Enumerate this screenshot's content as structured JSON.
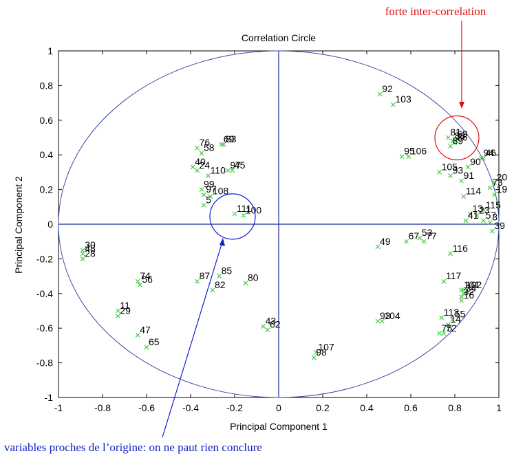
{
  "chart_data": {
    "type": "scatter",
    "title": "Correlation Circle",
    "xlabel": "Principal Component 1",
    "ylabel": "Principal Component 2",
    "xlim": [
      -1,
      1
    ],
    "ylim": [
      -1,
      1
    ],
    "xticks": [
      "-1",
      "-0.8",
      "-0.6",
      "-0.4",
      "-0.2",
      "0",
      "0.2",
      "0.4",
      "0.6",
      "0.8",
      "1"
    ],
    "yticks": [
      "1",
      "0.8",
      "0.6",
      "0.4",
      "0.2",
      "0",
      "-0.2",
      "-0.4",
      "-0.6",
      "-0.8",
      "-1"
    ],
    "grid": false,
    "marker": "x",
    "marker_color": "#44cc44",
    "axes_color": "#1a2a9a",
    "circle_color": "#3a4aa0",
    "points": [
      {
        "label": "92",
        "x": 0.46,
        "y": 0.75
      },
      {
        "label": "103",
        "x": 0.52,
        "y": 0.69
      },
      {
        "label": "81",
        "x": 0.77,
        "y": 0.5
      },
      {
        "label": "88",
        "x": 0.79,
        "y": 0.48
      },
      {
        "label": "60",
        "x": 0.8,
        "y": 0.49
      },
      {
        "label": "86",
        "x": 0.8,
        "y": 0.47
      },
      {
        "label": "89",
        "x": 0.78,
        "y": 0.45
      },
      {
        "label": "106",
        "x": 0.59,
        "y": 0.39
      },
      {
        "label": "95",
        "x": 0.56,
        "y": 0.39
      },
      {
        "label": "94",
        "x": 0.92,
        "y": 0.38
      },
      {
        "label": "46",
        "x": 0.93,
        "y": 0.38
      },
      {
        "label": "90",
        "x": 0.86,
        "y": 0.33
      },
      {
        "label": "105",
        "x": 0.73,
        "y": 0.3
      },
      {
        "label": "93",
        "x": 0.78,
        "y": 0.28
      },
      {
        "label": "91",
        "x": 0.83,
        "y": 0.25
      },
      {
        "label": "114",
        "x": 0.84,
        "y": 0.16
      },
      {
        "label": "115",
        "x": 0.93,
        "y": 0.08
      },
      {
        "label": "20",
        "x": 0.98,
        "y": 0.24
      },
      {
        "label": "73",
        "x": 0.96,
        "y": 0.21
      },
      {
        "label": "19",
        "x": 0.98,
        "y": 0.17
      },
      {
        "label": "13",
        "x": 0.87,
        "y": 0.06
      },
      {
        "label": "23",
        "x": 0.9,
        "y": 0.05
      },
      {
        "label": "57",
        "x": 0.93,
        "y": 0.02
      },
      {
        "label": "3",
        "x": 0.96,
        "y": 0.01
      },
      {
        "label": "41",
        "x": 0.85,
        "y": 0.02
      },
      {
        "label": "39",
        "x": 0.97,
        "y": -0.04
      },
      {
        "label": "49",
        "x": 0.45,
        "y": -0.13
      },
      {
        "label": "67",
        "x": 0.58,
        "y": -0.1
      },
      {
        "label": "53",
        "x": 0.64,
        "y": -0.08
      },
      {
        "label": "77",
        "x": 0.66,
        "y": -0.1
      },
      {
        "label": "116",
        "x": 0.78,
        "y": -0.17
      },
      {
        "label": "117",
        "x": 0.75,
        "y": -0.33
      },
      {
        "label": "101",
        "x": 0.83,
        "y": -0.38
      },
      {
        "label": "102",
        "x": 0.84,
        "y": -0.38
      },
      {
        "label": "32",
        "x": 0.83,
        "y": -0.42
      },
      {
        "label": "34",
        "x": 0.84,
        "y": -0.4
      },
      {
        "label": "16",
        "x": 0.83,
        "y": -0.44
      },
      {
        "label": "113",
        "x": 0.74,
        "y": -0.54
      },
      {
        "label": "55",
        "x": 0.79,
        "y": -0.55
      },
      {
        "label": "14",
        "x": 0.77,
        "y": -0.58
      },
      {
        "label": "75",
        "x": 0.73,
        "y": -0.63
      },
      {
        "label": "72",
        "x": 0.75,
        "y": -0.63
      },
      {
        "label": "93",
        "x": 0.45,
        "y": -0.56
      },
      {
        "label": "104",
        "x": 0.47,
        "y": -0.56
      },
      {
        "label": "107",
        "x": 0.17,
        "y": -0.74
      },
      {
        "label": "98",
        "x": 0.16,
        "y": -0.77
      },
      {
        "label": "43",
        "x": -0.07,
        "y": -0.59
      },
      {
        "label": "62",
        "x": -0.05,
        "y": -0.61
      },
      {
        "label": "85",
        "x": -0.27,
        "y": -0.3
      },
      {
        "label": "87",
        "x": -0.37,
        "y": -0.33
      },
      {
        "label": "82",
        "x": -0.3,
        "y": -0.38
      },
      {
        "label": "80",
        "x": -0.15,
        "y": -0.34
      },
      {
        "label": "74",
        "x": -0.64,
        "y": -0.33
      },
      {
        "label": "56",
        "x": -0.63,
        "y": -0.35
      },
      {
        "label": "11",
        "x": -0.73,
        "y": -0.5
      },
      {
        "label": "29",
        "x": -0.73,
        "y": -0.53
      },
      {
        "label": "47",
        "x": -0.64,
        "y": -0.64
      },
      {
        "label": "65",
        "x": -0.6,
        "y": -0.71
      },
      {
        "label": "30",
        "x": -0.89,
        "y": -0.15
      },
      {
        "label": "48",
        "x": -0.89,
        "y": -0.17
      },
      {
        "label": "28",
        "x": -0.89,
        "y": -0.2
      },
      {
        "label": "76",
        "x": -0.37,
        "y": 0.44
      },
      {
        "label": "58",
        "x": -0.35,
        "y": 0.41
      },
      {
        "label": "69",
        "x": -0.26,
        "y": 0.46
      },
      {
        "label": "83",
        "x": -0.25,
        "y": 0.46
      },
      {
        "label": "40",
        "x": -0.39,
        "y": 0.33
      },
      {
        "label": "24",
        "x": -0.37,
        "y": 0.31
      },
      {
        "label": "110",
        "x": -0.32,
        "y": 0.28
      },
      {
        "label": "97",
        "x": -0.23,
        "y": 0.31
      },
      {
        "label": "45",
        "x": -0.21,
        "y": 0.31
      },
      {
        "label": "99",
        "x": -0.35,
        "y": 0.2
      },
      {
        "label": "97",
        "x": -0.34,
        "y": 0.17
      },
      {
        "label": "108",
        "x": -0.31,
        "y": 0.16
      },
      {
        "label": "5",
        "x": -0.34,
        "y": 0.11
      },
      {
        "label": "111",
        "x": -0.2,
        "y": 0.06
      },
      {
        "label": "100",
        "x": -0.16,
        "y": 0.05
      }
    ],
    "annotations": [
      {
        "text": "forte inter-correlation",
        "color": "#e01010",
        "target_x": 0.8,
        "target_y": 0.49
      },
      {
        "text": "variables proches de l’origine: on ne paut rien conclure",
        "color": "#1020c8",
        "target_x": -0.2,
        "target_y": 0.06
      }
    ]
  }
}
